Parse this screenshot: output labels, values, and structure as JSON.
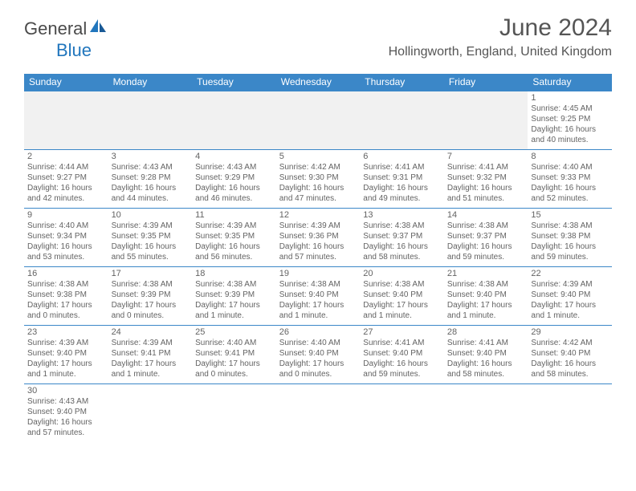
{
  "header": {
    "logo_general": "General",
    "logo_blue": "Blue",
    "month_title": "June 2024",
    "location": "Hollingworth, England, United Kingdom"
  },
  "colors": {
    "header_bar": "#3b87c8",
    "text_gray": "#636363",
    "logo_blue": "#2176bd",
    "empty_cell": "#f1f1f1",
    "border": "#3b87c8"
  },
  "weekdays": [
    "Sunday",
    "Monday",
    "Tuesday",
    "Wednesday",
    "Thursday",
    "Friday",
    "Saturday"
  ],
  "weeks": [
    [
      {
        "empty": true
      },
      {
        "empty": true
      },
      {
        "empty": true
      },
      {
        "empty": true
      },
      {
        "empty": true
      },
      {
        "empty": true
      },
      {
        "day": "1",
        "sunrise": "Sunrise: 4:45 AM",
        "sunset": "Sunset: 9:25 PM",
        "daylight1": "Daylight: 16 hours",
        "daylight2": "and 40 minutes."
      }
    ],
    [
      {
        "day": "2",
        "sunrise": "Sunrise: 4:44 AM",
        "sunset": "Sunset: 9:27 PM",
        "daylight1": "Daylight: 16 hours",
        "daylight2": "and 42 minutes."
      },
      {
        "day": "3",
        "sunrise": "Sunrise: 4:43 AM",
        "sunset": "Sunset: 9:28 PM",
        "daylight1": "Daylight: 16 hours",
        "daylight2": "and 44 minutes."
      },
      {
        "day": "4",
        "sunrise": "Sunrise: 4:43 AM",
        "sunset": "Sunset: 9:29 PM",
        "daylight1": "Daylight: 16 hours",
        "daylight2": "and 46 minutes."
      },
      {
        "day": "5",
        "sunrise": "Sunrise: 4:42 AM",
        "sunset": "Sunset: 9:30 PM",
        "daylight1": "Daylight: 16 hours",
        "daylight2": "and 47 minutes."
      },
      {
        "day": "6",
        "sunrise": "Sunrise: 4:41 AM",
        "sunset": "Sunset: 9:31 PM",
        "daylight1": "Daylight: 16 hours",
        "daylight2": "and 49 minutes."
      },
      {
        "day": "7",
        "sunrise": "Sunrise: 4:41 AM",
        "sunset": "Sunset: 9:32 PM",
        "daylight1": "Daylight: 16 hours",
        "daylight2": "and 51 minutes."
      },
      {
        "day": "8",
        "sunrise": "Sunrise: 4:40 AM",
        "sunset": "Sunset: 9:33 PM",
        "daylight1": "Daylight: 16 hours",
        "daylight2": "and 52 minutes."
      }
    ],
    [
      {
        "day": "9",
        "sunrise": "Sunrise: 4:40 AM",
        "sunset": "Sunset: 9:34 PM",
        "daylight1": "Daylight: 16 hours",
        "daylight2": "and 53 minutes."
      },
      {
        "day": "10",
        "sunrise": "Sunrise: 4:39 AM",
        "sunset": "Sunset: 9:35 PM",
        "daylight1": "Daylight: 16 hours",
        "daylight2": "and 55 minutes."
      },
      {
        "day": "11",
        "sunrise": "Sunrise: 4:39 AM",
        "sunset": "Sunset: 9:35 PM",
        "daylight1": "Daylight: 16 hours",
        "daylight2": "and 56 minutes."
      },
      {
        "day": "12",
        "sunrise": "Sunrise: 4:39 AM",
        "sunset": "Sunset: 9:36 PM",
        "daylight1": "Daylight: 16 hours",
        "daylight2": "and 57 minutes."
      },
      {
        "day": "13",
        "sunrise": "Sunrise: 4:38 AM",
        "sunset": "Sunset: 9:37 PM",
        "daylight1": "Daylight: 16 hours",
        "daylight2": "and 58 minutes."
      },
      {
        "day": "14",
        "sunrise": "Sunrise: 4:38 AM",
        "sunset": "Sunset: 9:37 PM",
        "daylight1": "Daylight: 16 hours",
        "daylight2": "and 59 minutes."
      },
      {
        "day": "15",
        "sunrise": "Sunrise: 4:38 AM",
        "sunset": "Sunset: 9:38 PM",
        "daylight1": "Daylight: 16 hours",
        "daylight2": "and 59 minutes."
      }
    ],
    [
      {
        "day": "16",
        "sunrise": "Sunrise: 4:38 AM",
        "sunset": "Sunset: 9:38 PM",
        "daylight1": "Daylight: 17 hours",
        "daylight2": "and 0 minutes."
      },
      {
        "day": "17",
        "sunrise": "Sunrise: 4:38 AM",
        "sunset": "Sunset: 9:39 PM",
        "daylight1": "Daylight: 17 hours",
        "daylight2": "and 0 minutes."
      },
      {
        "day": "18",
        "sunrise": "Sunrise: 4:38 AM",
        "sunset": "Sunset: 9:39 PM",
        "daylight1": "Daylight: 17 hours",
        "daylight2": "and 1 minute."
      },
      {
        "day": "19",
        "sunrise": "Sunrise: 4:38 AM",
        "sunset": "Sunset: 9:40 PM",
        "daylight1": "Daylight: 17 hours",
        "daylight2": "and 1 minute."
      },
      {
        "day": "20",
        "sunrise": "Sunrise: 4:38 AM",
        "sunset": "Sunset: 9:40 PM",
        "daylight1": "Daylight: 17 hours",
        "daylight2": "and 1 minute."
      },
      {
        "day": "21",
        "sunrise": "Sunrise: 4:38 AM",
        "sunset": "Sunset: 9:40 PM",
        "daylight1": "Daylight: 17 hours",
        "daylight2": "and 1 minute."
      },
      {
        "day": "22",
        "sunrise": "Sunrise: 4:39 AM",
        "sunset": "Sunset: 9:40 PM",
        "daylight1": "Daylight: 17 hours",
        "daylight2": "and 1 minute."
      }
    ],
    [
      {
        "day": "23",
        "sunrise": "Sunrise: 4:39 AM",
        "sunset": "Sunset: 9:40 PM",
        "daylight1": "Daylight: 17 hours",
        "daylight2": "and 1 minute."
      },
      {
        "day": "24",
        "sunrise": "Sunrise: 4:39 AM",
        "sunset": "Sunset: 9:41 PM",
        "daylight1": "Daylight: 17 hours",
        "daylight2": "and 1 minute."
      },
      {
        "day": "25",
        "sunrise": "Sunrise: 4:40 AM",
        "sunset": "Sunset: 9:41 PM",
        "daylight1": "Daylight: 17 hours",
        "daylight2": "and 0 minutes."
      },
      {
        "day": "26",
        "sunrise": "Sunrise: 4:40 AM",
        "sunset": "Sunset: 9:40 PM",
        "daylight1": "Daylight: 17 hours",
        "daylight2": "and 0 minutes."
      },
      {
        "day": "27",
        "sunrise": "Sunrise: 4:41 AM",
        "sunset": "Sunset: 9:40 PM",
        "daylight1": "Daylight: 16 hours",
        "daylight2": "and 59 minutes."
      },
      {
        "day": "28",
        "sunrise": "Sunrise: 4:41 AM",
        "sunset": "Sunset: 9:40 PM",
        "daylight1": "Daylight: 16 hours",
        "daylight2": "and 58 minutes."
      },
      {
        "day": "29",
        "sunrise": "Sunrise: 4:42 AM",
        "sunset": "Sunset: 9:40 PM",
        "daylight1": "Daylight: 16 hours",
        "daylight2": "and 58 minutes."
      }
    ],
    [
      {
        "day": "30",
        "sunrise": "Sunrise: 4:43 AM",
        "sunset": "Sunset: 9:40 PM",
        "daylight1": "Daylight: 16 hours",
        "daylight2": "and 57 minutes."
      },
      {
        "empty_last": true
      },
      {
        "empty_last": true
      },
      {
        "empty_last": true
      },
      {
        "empty_last": true
      },
      {
        "empty_last": true
      },
      {
        "empty_last": true
      }
    ]
  ]
}
